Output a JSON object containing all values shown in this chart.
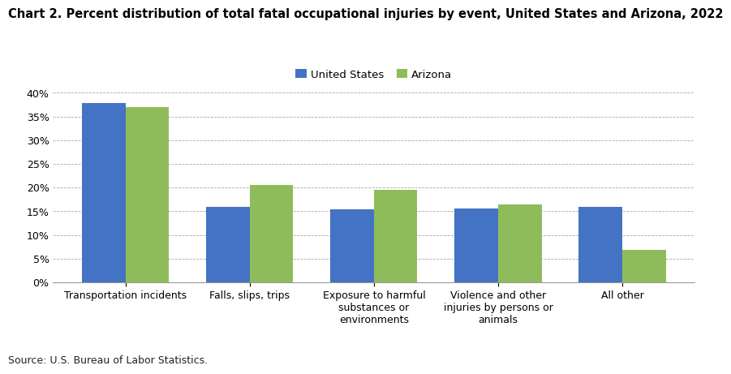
{
  "title": "Chart 2. Percent distribution of total fatal occupational injuries by event, United States and Arizona, 2022",
  "categories": [
    "Transportation incidents",
    "Falls, slips, trips",
    "Exposure to harmful\nsubstances or\nenvironments",
    "Violence and other\ninjuries by persons or\nanimals",
    "All other"
  ],
  "us_values": [
    37.9,
    15.9,
    15.4,
    15.5,
    16.0
  ],
  "az_values": [
    37.0,
    20.5,
    19.5,
    16.5,
    6.8
  ],
  "us_color": "#4472C4",
  "az_color": "#8FBC5A",
  "us_label": "United States",
  "az_label": "Arizona",
  "ylim": [
    0,
    42
  ],
  "yticks": [
    0,
    5,
    10,
    15,
    20,
    25,
    30,
    35,
    40
  ],
  "source": "Source: U.S. Bureau of Labor Statistics.",
  "bar_width": 0.35,
  "grid_color": "#AAAAAA",
  "title_fontsize": 10.5,
  "tick_fontsize": 9,
  "legend_fontsize": 9.5,
  "source_fontsize": 9,
  "background_color": "#FFFFFF"
}
